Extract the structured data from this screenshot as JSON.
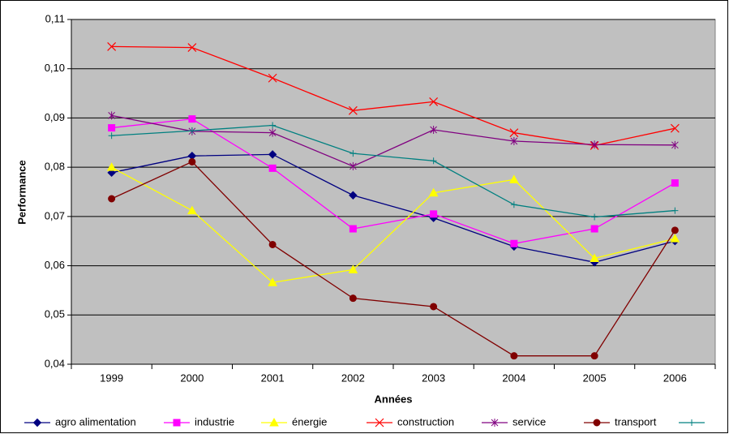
{
  "chart_data": {
    "type": "line",
    "x_label": "Années",
    "y_label": "Performance",
    "categories": [
      "1999",
      "2000",
      "2001",
      "2002",
      "2003",
      "2004",
      "2005",
      "2006"
    ],
    "ylim": [
      0.04,
      0.11
    ],
    "yticks": [
      {
        "value": 0.04,
        "label": "0,04"
      },
      {
        "value": 0.05,
        "label": "0,05"
      },
      {
        "value": 0.06,
        "label": "0,06"
      },
      {
        "value": 0.07,
        "label": "0,07"
      },
      {
        "value": 0.08,
        "label": "0,08"
      },
      {
        "value": 0.09,
        "label": "0,09"
      },
      {
        "value": 0.1,
        "label": "0,10"
      },
      {
        "value": 0.11,
        "label": "0,11"
      }
    ],
    "grid": true,
    "background": "#c0c0c0",
    "legend": "bottom",
    "series": [
      {
        "name": "agro alimentation",
        "color": "#000080",
        "marker": "diamond",
        "values": [
          0.0789,
          0.0823,
          0.0826,
          0.0743,
          0.0697,
          0.0639,
          0.0607,
          0.065
        ]
      },
      {
        "name": "industrie",
        "color": "#ff00ff",
        "marker": "square",
        "values": [
          0.088,
          0.0898,
          0.0798,
          0.0675,
          0.0705,
          0.0645,
          0.0675,
          0.0768
        ]
      },
      {
        "name": "énergie",
        "color": "#ffff00",
        "marker": "triangle",
        "values": [
          0.08,
          0.0712,
          0.0566,
          0.0592,
          0.0748,
          0.0775,
          0.0615,
          0.0655
        ]
      },
      {
        "name": "construction",
        "color": "#ff0000",
        "marker": "x",
        "values": [
          0.1045,
          0.1043,
          0.0981,
          0.0915,
          0.0933,
          0.087,
          0.0844,
          0.0879
        ]
      },
      {
        "name": "service",
        "color": "#800080",
        "marker": "star",
        "values": [
          0.0905,
          0.0873,
          0.087,
          0.0802,
          0.0876,
          0.0853,
          0.0846,
          0.0845
        ]
      },
      {
        "name": "transport",
        "color": "#800000",
        "marker": "circle",
        "values": [
          0.0736,
          0.0811,
          0.0643,
          0.0534,
          0.0517,
          0.0417,
          0.0417,
          0.0672
        ]
      },
      {
        "color": "#008080",
        "marker": "plus",
        "values": [
          0.0864,
          0.0874,
          0.0885,
          0.0828,
          0.0813,
          0.0724,
          0.0699,
          0.0712
        ]
      }
    ]
  }
}
